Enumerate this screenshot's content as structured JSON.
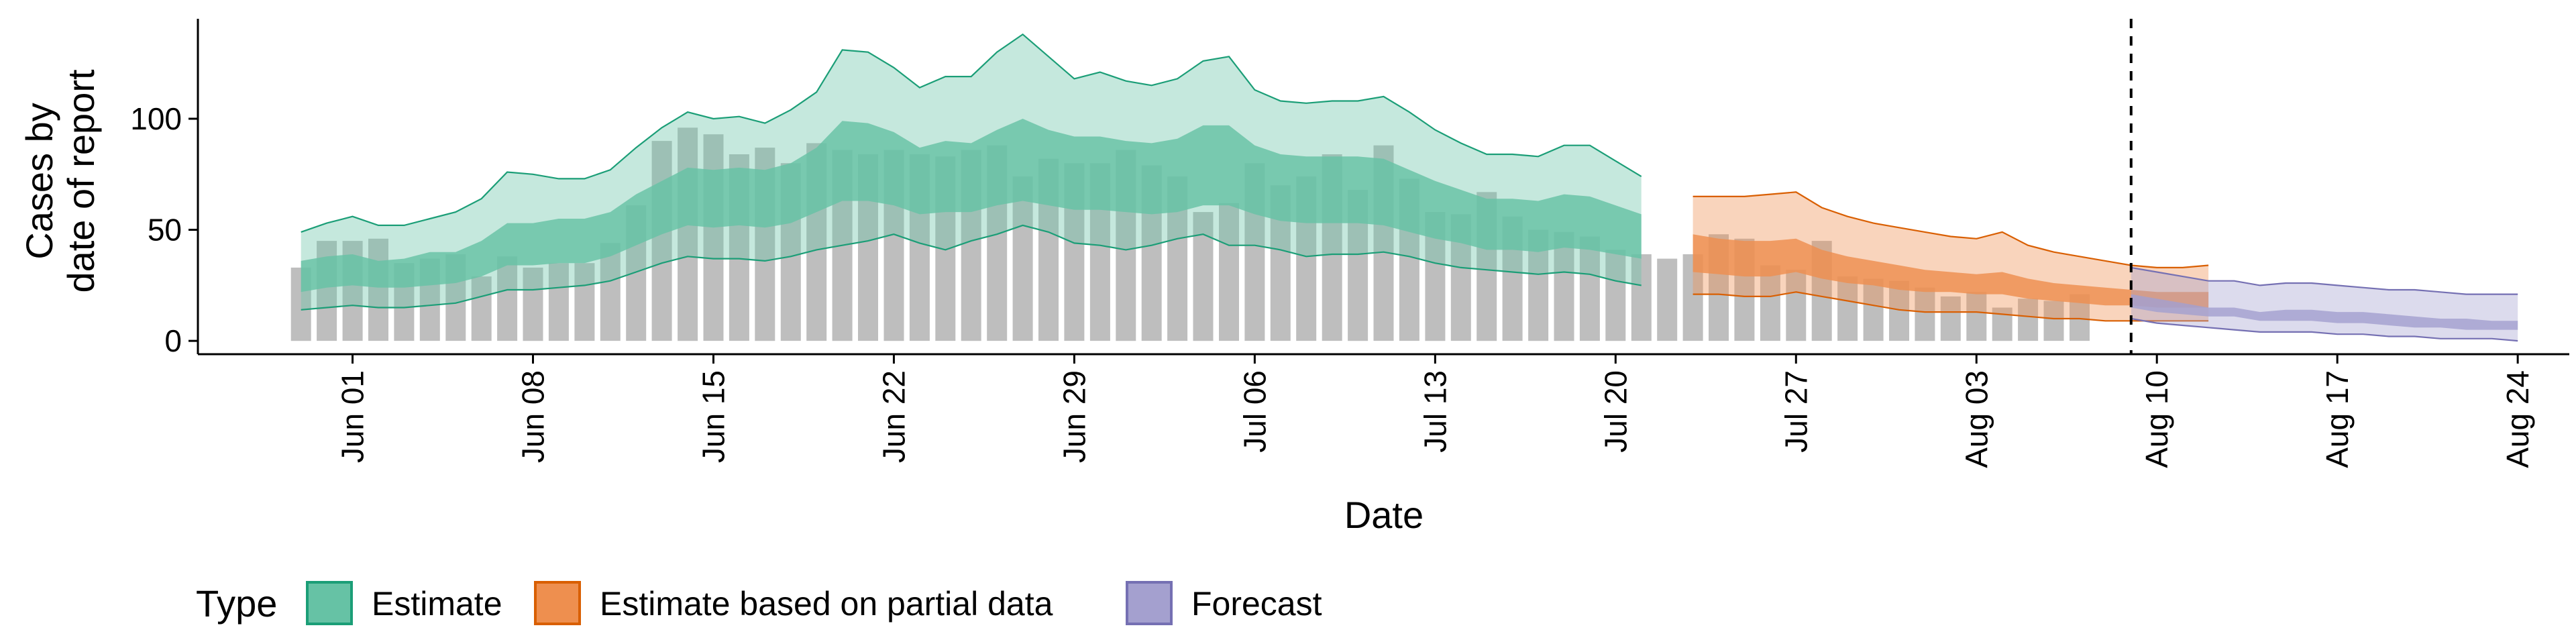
{
  "chart_data": {
    "type": "area",
    "xlabel": "Date",
    "ylabel": [
      "Cases by",
      "date of report"
    ],
    "ylim": [
      -6,
      145
    ],
    "xlim": [
      "2020-05-26",
      "2020-08-26"
    ],
    "x_ticks": [
      "2020-06-01",
      "2020-06-08",
      "2020-06-15",
      "2020-06-22",
      "2020-06-29",
      "2020-07-06",
      "2020-07-13",
      "2020-07-20",
      "2020-07-27",
      "2020-08-03",
      "2020-08-10",
      "2020-08-17",
      "2020-08-24"
    ],
    "x_tick_labels": [
      "Jun 01",
      "Jun 08",
      "Jun 15",
      "Jun 22",
      "Jun 29",
      "Jul 06",
      "Jul 13",
      "Jul 20",
      "Jul 27",
      "Aug 03",
      "Aug 10",
      "Aug 17",
      "Aug 24"
    ],
    "y_ticks": [
      0,
      50,
      100
    ],
    "y_tick_labels": [
      "0",
      "50",
      "100"
    ],
    "grid": false,
    "legend_position": "bottom",
    "legend": {
      "title": "Type",
      "items": [
        {
          "label": "Estimate",
          "fill": "#66c2a5",
          "stroke": "#1b9e77"
        },
        {
          "label": "Estimate based on partial data",
          "fill": "#ee8f4f",
          "stroke": "#d95f02"
        },
        {
          "label": "Forecast",
          "fill": "#a4a0cf",
          "stroke": "#7570b3"
        }
      ]
    },
    "vline": {
      "x": "2020-08-09",
      "style": "dashed"
    },
    "bars": {
      "start": "2020-05-30",
      "color": "#bebebe",
      "values": [
        33,
        45,
        45,
        46,
        35,
        37,
        39,
        29,
        38,
        33,
        35,
        35,
        44,
        61,
        90,
        96,
        93,
        84,
        87,
        80,
        89,
        86,
        84,
        86,
        84,
        83,
        86,
        88,
        74,
        82,
        80,
        80,
        86,
        79,
        74,
        58,
        62,
        80,
        70,
        74,
        84,
        68,
        88,
        73,
        58,
        57,
        67,
        56,
        50,
        49,
        47,
        41,
        39,
        37,
        39,
        48,
        46,
        34,
        32,
        45,
        29,
        28,
        27,
        24,
        20,
        22,
        15,
        19,
        18,
        21
      ]
    },
    "series": [
      {
        "name": "Estimate",
        "start": "2020-05-30",
        "upper90": [
          49,
          53,
          56,
          52,
          52,
          55,
          58,
          64,
          76,
          75,
          73,
          73,
          77,
          87,
          96,
          103,
          100,
          101,
          98,
          104,
          112,
          131,
          130,
          123,
          114,
          119,
          119,
          130,
          138,
          128,
          118,
          121,
          117,
          115,
          118,
          126,
          128,
          113,
          108,
          107,
          108,
          108,
          110,
          103,
          95,
          89,
          84,
          84,
          83,
          88,
          88,
          81,
          74
        ],
        "upper50": [
          36,
          38,
          39,
          36,
          37,
          40,
          40,
          45,
          53,
          53,
          55,
          55,
          58,
          66,
          72,
          78,
          77,
          78,
          77,
          80,
          87,
          99,
          98,
          94,
          87,
          90,
          89,
          95,
          100,
          95,
          92,
          92,
          90,
          89,
          91,
          97,
          97,
          88,
          84,
          83,
          83,
          83,
          82,
          77,
          72,
          68,
          64,
          64,
          63,
          66,
          65,
          61,
          57
        ],
        "lower50": [
          22,
          24,
          25,
          24,
          24,
          25,
          26,
          29,
          34,
          34,
          35,
          35,
          38,
          43,
          48,
          52,
          51,
          52,
          51,
          53,
          58,
          63,
          63,
          61,
          57,
          58,
          58,
          61,
          63,
          61,
          59,
          59,
          58,
          57,
          58,
          61,
          61,
          57,
          54,
          53,
          53,
          53,
          52,
          49,
          46,
          44,
          41,
          41,
          40,
          42,
          41,
          39,
          37
        ],
        "lower90": [
          14,
          15,
          16,
          15,
          15,
          16,
          17,
          20,
          23,
          23,
          24,
          25,
          27,
          31,
          35,
          38,
          37,
          37,
          36,
          38,
          41,
          43,
          45,
          48,
          44,
          41,
          45,
          48,
          52,
          49,
          44,
          43,
          41,
          43,
          46,
          48,
          43,
          43,
          41,
          38,
          39,
          39,
          40,
          38,
          35,
          33,
          32,
          31,
          30,
          31,
          30,
          27,
          25
        ]
      },
      {
        "name": "Estimate based on partial data",
        "start": "2020-07-23",
        "upper90": [
          65,
          65,
          65,
          66,
          67,
          60,
          56,
          53,
          51,
          49,
          47,
          46,
          49,
          43,
          40,
          38,
          36,
          34,
          33,
          33,
          34
        ],
        "upper50": [
          48,
          46,
          45,
          45,
          46,
          41,
          38,
          36,
          34,
          32,
          31,
          30,
          31,
          28,
          26,
          25,
          24,
          23,
          22,
          22,
          22
        ],
        "lower50": [
          31,
          30,
          29,
          29,
          31,
          28,
          26,
          25,
          23,
          22,
          22,
          21,
          21,
          19,
          18,
          17,
          16,
          16,
          15,
          15,
          15
        ],
        "lower90": [
          21,
          21,
          20,
          20,
          22,
          20,
          18,
          16,
          14,
          13,
          13,
          13,
          12,
          11,
          10,
          10,
          9,
          9,
          9,
          9,
          9
        ]
      },
      {
        "name": "Forecast",
        "start": "2020-08-09",
        "upper90": [
          33,
          31,
          29,
          27,
          27,
          25,
          26,
          26,
          25,
          24,
          23,
          23,
          22,
          21,
          21,
          21
        ],
        "upper50": [
          21,
          19,
          17,
          15,
          15,
          13,
          14,
          14,
          13,
          13,
          12,
          11,
          10,
          10,
          9,
          9
        ],
        "lower50": [
          15,
          13,
          12,
          11,
          11,
          9,
          9,
          9,
          8,
          8,
          7,
          6,
          6,
          5,
          5,
          5
        ],
        "lower90": [
          10,
          8,
          7,
          6,
          5,
          4,
          4,
          4,
          3,
          3,
          2,
          2,
          1,
          1,
          1,
          0
        ]
      }
    ]
  }
}
